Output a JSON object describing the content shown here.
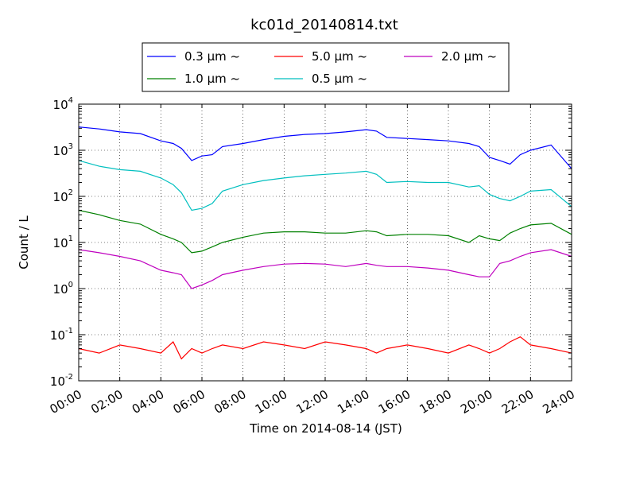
{
  "chart_data": {
    "type": "line",
    "title": "kc01d_20140814.txt",
    "xlabel": "Time on 2014-08-14 (JST)",
    "ylabel": "Count / L",
    "yscale": "log",
    "xlim": [
      "00:00",
      "24:00"
    ],
    "ylim": [
      0.01,
      10000
    ],
    "grid": true,
    "legend_position": "top-center",
    "x_ticks": [
      "00:00",
      "02:00",
      "04:00",
      "06:00",
      "08:00",
      "10:00",
      "12:00",
      "14:00",
      "16:00",
      "18:00",
      "20:00",
      "22:00",
      "24:00"
    ],
    "y_ticks": [
      {
        "value": 0.01,
        "base": "10",
        "exp": "-2"
      },
      {
        "value": 0.1,
        "base": "10",
        "exp": "-1"
      },
      {
        "value": 1,
        "base": "10",
        "exp": "0"
      },
      {
        "value": 10,
        "base": "10",
        "exp": "1"
      },
      {
        "value": 100,
        "base": "10",
        "exp": "2"
      },
      {
        "value": 1000,
        "base": "10",
        "exp": "3"
      },
      {
        "value": 10000,
        "base": "10",
        "exp": "4"
      }
    ],
    "x_hours": [
      0,
      1,
      2,
      3,
      4,
      4.6,
      5,
      5.5,
      6,
      6.5,
      7,
      8,
      9,
      10,
      11,
      12,
      13,
      14,
      14.5,
      15,
      16,
      17,
      18,
      19,
      19.5,
      20,
      20.5,
      21,
      21.5,
      22,
      23,
      24
    ],
    "series": [
      {
        "name": "0.3 μm ~",
        "color": "#0000ff",
        "values": [
          3200,
          2900,
          2500,
          2300,
          1600,
          1400,
          1100,
          600,
          750,
          800,
          1200,
          1400,
          1700,
          2000,
          2200,
          2300,
          2500,
          2800,
          2600,
          1900,
          1800,
          1700,
          1600,
          1400,
          1200,
          700,
          600,
          500,
          800,
          1000,
          1300,
          400
        ]
      },
      {
        "name": "1.0 μm ~",
        "color": "#008000",
        "values": [
          50,
          40,
          30,
          25,
          15,
          12,
          10,
          6,
          6.5,
          8,
          10,
          13,
          16,
          17,
          17,
          16,
          16,
          18,
          17,
          14,
          15,
          15,
          14,
          10,
          14,
          12,
          11,
          16,
          20,
          24,
          26,
          15
        ]
      },
      {
        "name": "5.0 μm ~",
        "color": "#ff0000",
        "values": [
          0.05,
          0.04,
          0.06,
          0.05,
          0.04,
          0.07,
          0.03,
          0.05,
          0.04,
          0.05,
          0.06,
          0.05,
          0.07,
          0.06,
          0.05,
          0.07,
          0.06,
          0.05,
          0.04,
          0.05,
          0.06,
          0.05,
          0.04,
          0.06,
          0.05,
          0.04,
          0.05,
          0.07,
          0.09,
          0.06,
          0.05,
          0.04
        ]
      },
      {
        "name": "0.5 μm ~",
        "color": "#00bfbf",
        "values": [
          600,
          450,
          380,
          350,
          250,
          180,
          120,
          50,
          55,
          70,
          130,
          180,
          220,
          250,
          280,
          300,
          320,
          350,
          300,
          200,
          210,
          200,
          200,
          160,
          170,
          110,
          90,
          80,
          100,
          130,
          140,
          60
        ]
      },
      {
        "name": "2.0 μm ~",
        "color": "#bf00bf",
        "values": [
          7,
          6,
          5,
          4,
          2.5,
          2.2,
          2,
          1,
          1.2,
          1.5,
          2,
          2.5,
          3,
          3.4,
          3.5,
          3.4,
          3,
          3.5,
          3.2,
          3,
          3,
          2.8,
          2.5,
          2,
          1.8,
          1.8,
          3.5,
          4,
          5,
          6,
          7,
          5
        ]
      }
    ]
  }
}
